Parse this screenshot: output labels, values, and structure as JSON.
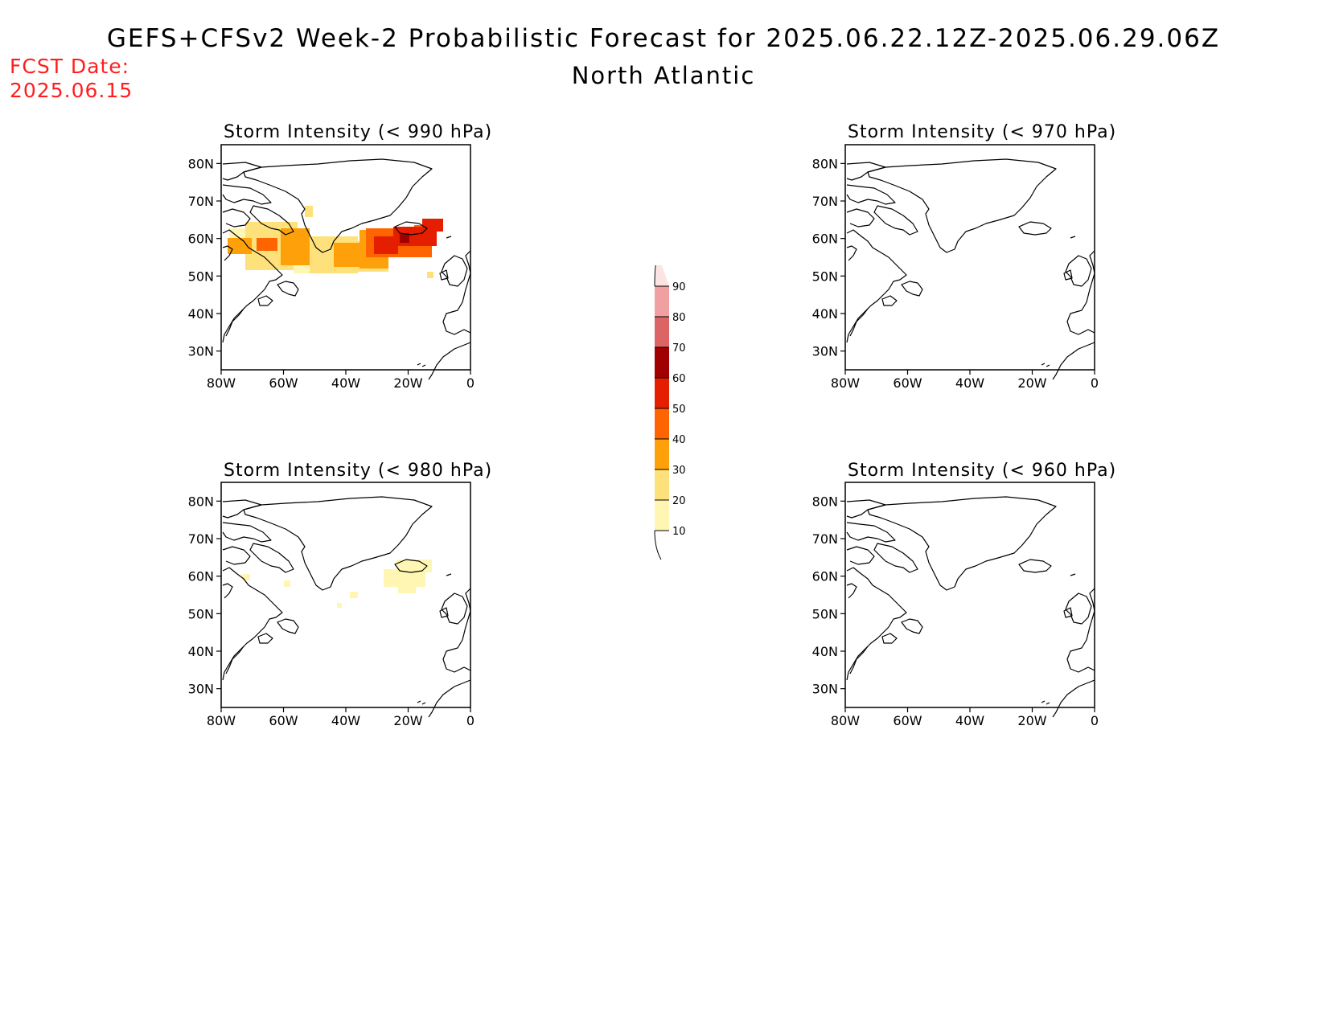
{
  "title": "GEFS+CFSv2 Week-2 Probabilistic Forecast for 2025.06.22.12Z-2025.06.29.06Z",
  "subtitle": "North Atlantic",
  "fcst_date_label": "FCST Date:",
  "fcst_date_value": "2025.06.15",
  "colors": {
    "fcst_text": "#ff1e1e"
  },
  "colorbar": {
    "levels": [
      "10",
      "20",
      "30",
      "40",
      "50",
      "60",
      "70",
      "80",
      "90"
    ],
    "colors": [
      "#fff6b4",
      "#fee17a",
      "#fea00a",
      "#fe6400",
      "#e61e00",
      "#a00000",
      "#dc6464",
      "#f0a0a0",
      "#fde4e4"
    ]
  },
  "axes": {
    "lat_labels": [
      "80N",
      "70N",
      "60N",
      "50N",
      "40N",
      "30N"
    ],
    "lon_labels": [
      "80W",
      "60W",
      "40W",
      "20W",
      "0"
    ],
    "lat_range": [
      25,
      85
    ],
    "lon_range": [
      -80,
      0
    ]
  },
  "panels": [
    {
      "title": "Storm Intensity (< 990 hPa)"
    },
    {
      "title": "Storm Intensity (< 970 hPa)"
    },
    {
      "title": "Storm Intensity (< 980 hPa)"
    },
    {
      "title": "Storm Intensity (< 960 hPa)"
    }
  ]
}
